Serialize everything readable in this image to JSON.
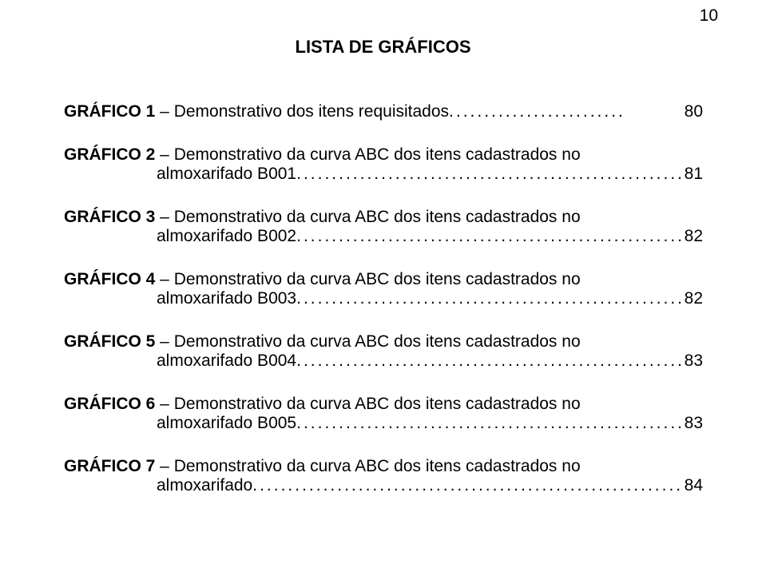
{
  "page_number": "10",
  "title": "LISTA DE GRÁFICOS",
  "text_color": "#000000",
  "background_color": "#ffffff",
  "font_family": "Arial",
  "title_fontsize": 22,
  "body_fontsize": 21,
  "entries": [
    {
      "bold": "GRÁFICO 1",
      "rest_line1": " – Demonstrativo dos itens requisitados",
      "dots1": ".........................",
      "page1": "80",
      "single_line": true
    },
    {
      "bold": "GRÁFICO 2",
      "rest_line1": " – Demonstrativo  da  curva  ABC  dos  itens  cadastrados    no",
      "line2_lead": "almoxarifado B001",
      "dots": "...............................................................................",
      "page": "81"
    },
    {
      "bold": "GRÁFICO 3",
      "rest_line1": " – Demonstrativo  da  curva  ABC  dos  itens  cadastrados    no",
      "line2_lead": "almoxarifado B002",
      "dots": "...............................................................................",
      "page": "82"
    },
    {
      "bold": "GRÁFICO 4",
      "rest_line1": " – Demonstrativo  da  curva  ABC  dos  itens  cadastrados    no",
      "line2_lead": "almoxarifado B003",
      "dots": "...............................................................................",
      "page": "82"
    },
    {
      "bold": "GRÁFICO 5",
      "rest_line1": " – Demonstrativo  da  curva  ABC  dos  itens  cadastrados    no",
      "line2_lead": "almoxarifado B004",
      "dots": "...............................................................................",
      "page": "83"
    },
    {
      "bold": "GRÁFICO 6",
      "rest_line1": " – Demonstrativo  da  curva  ABC  dos  itens  cadastrados    no",
      "line2_lead": "almoxarifado B005",
      "dots": "...............................................................................",
      "page": "83"
    },
    {
      "bold": "GRÁFICO 7",
      "rest_line1": " – Demonstrativo  da  curva  ABC  dos  itens  cadastrados    no",
      "line2_lead": "almoxarifado",
      "dots": "..........................................................................................",
      "page": "84"
    }
  ]
}
